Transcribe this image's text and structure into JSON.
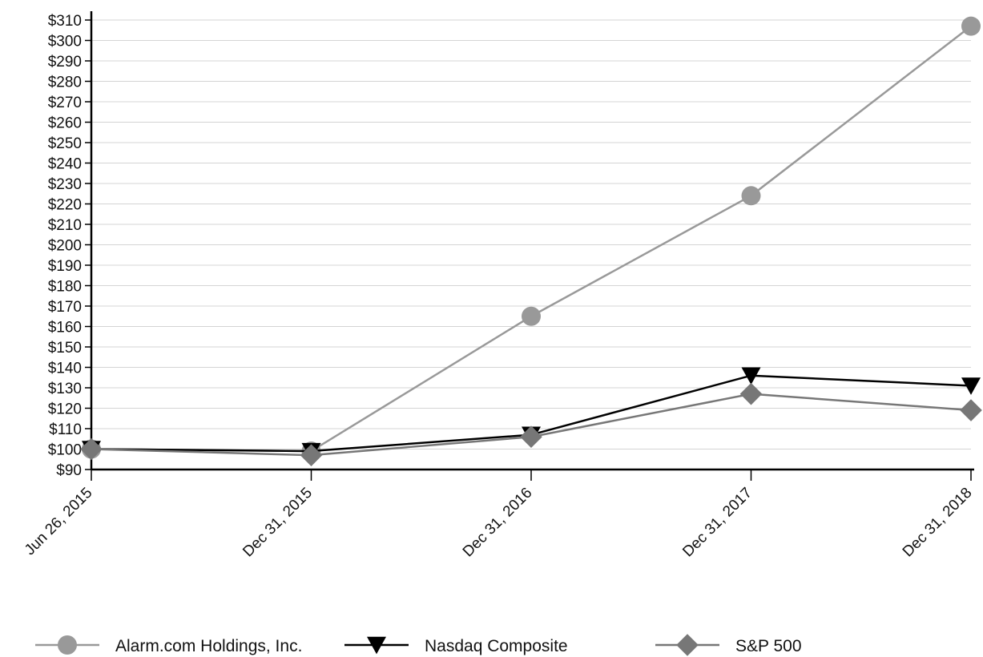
{
  "chart_data": {
    "type": "line",
    "categories": [
      "Jun 26, 2015",
      "Dec 31, 2015",
      "Dec 31, 2016",
      "Dec 31, 2017",
      "Dec 31, 2018"
    ],
    "y_ticks": [
      "$90",
      "$100",
      "$110",
      "$120",
      "$130",
      "$140",
      "$150",
      "$160",
      "$170",
      "$180",
      "$190",
      "$200",
      "$210",
      "$220",
      "$230",
      "$240",
      "$250",
      "$260",
      "$270",
      "$280",
      "$290",
      "$300",
      "$310"
    ],
    "ylim": [
      90,
      310
    ],
    "grid": true,
    "legend_position": "bottom",
    "series": [
      {
        "name": "Alarm.com Holdings, Inc.",
        "values": [
          100,
          99,
          165,
          224,
          307
        ],
        "color": "#999999",
        "marker": "circle"
      },
      {
        "name": "Nasdaq Composite",
        "values": [
          100,
          99,
          107,
          136,
          131
        ],
        "color": "#000000",
        "marker": "triangle-down"
      },
      {
        "name": "S&P 500",
        "values": [
          100,
          97,
          106,
          127,
          119
        ],
        "color": "#777777",
        "marker": "diamond"
      }
    ]
  }
}
